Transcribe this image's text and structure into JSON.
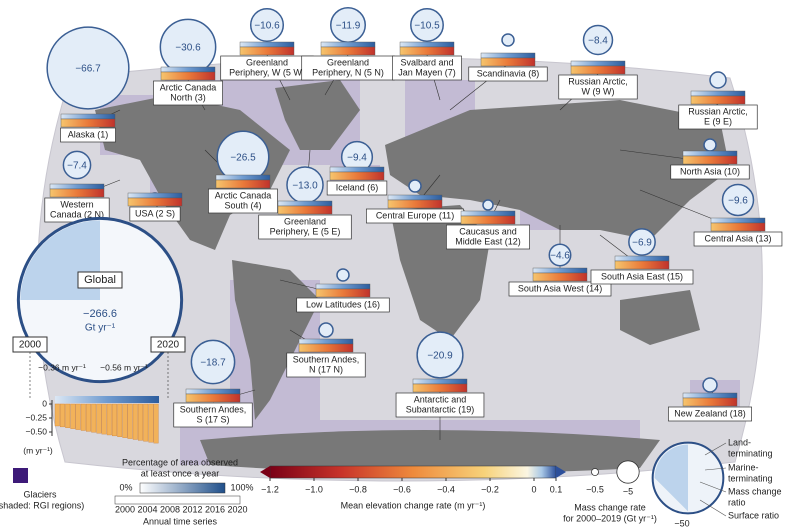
{
  "regions": [
    {
      "label": [
        "Alaska (1)"
      ],
      "rate": -66.7,
      "rate_label": "−66.7"
    },
    {
      "label": [
        "Arctic Canada",
        "North (3)"
      ],
      "rate": -30.6,
      "rate_label": "−30.6"
    },
    {
      "label": [
        "Greenland",
        "Periphery, W (5 W)"
      ],
      "rate": -10.6,
      "rate_label": "−10.6"
    },
    {
      "label": [
        "Greenland",
        "Periphery, N (5 N)"
      ],
      "rate": -11.9,
      "rate_label": "−11.9"
    },
    {
      "label": [
        "Svalbard and",
        "Jan Mayen (7)"
      ],
      "rate": -10.5,
      "rate_label": "−10.5"
    },
    {
      "label": [
        "Scandinavia (8)"
      ]
    },
    {
      "label": [
        "Russian Arctic,",
        "W (9 W)"
      ],
      "rate": -8.4,
      "rate_label": "−8.4"
    },
    {
      "label": [
        "Russian Arctic,",
        "E (9 E)"
      ]
    },
    {
      "label": [
        "Western",
        "Canada (2 N)"
      ],
      "rate": -7.4,
      "rate_label": "−7.4"
    },
    {
      "label": [
        "Arctic Canada",
        "South (4)"
      ],
      "rate": -26.5,
      "rate_label": "−26.5"
    },
    {
      "label": [
        "USA (2 S)"
      ]
    },
    {
      "label": [
        "Greenland",
        "Periphery, E (5 E)"
      ],
      "rate": -13.0,
      "rate_label": "−13.0"
    },
    {
      "label": [
        "Iceland (6)"
      ],
      "rate": -9.4,
      "rate_label": "−9.4"
    },
    {
      "label": [
        "Central Europe (11)"
      ]
    },
    {
      "label": [
        "Caucasus and",
        "Middle East (12)"
      ]
    },
    {
      "label": [
        "North Asia (10)"
      ]
    },
    {
      "label": [
        "Central Asia (13)"
      ],
      "rate": -9.6,
      "rate_label": "−9.6"
    },
    {
      "label": [
        "South Asia West (14)"
      ],
      "rate": -4.6,
      "rate_label": "−4.6"
    },
    {
      "label": [
        "South Asia East (15)"
      ],
      "rate": -6.9,
      "rate_label": "−6.9"
    },
    {
      "label": [
        "Low Latitudes (16)"
      ]
    },
    {
      "label": [
        "Southern Andes,",
        "N (17 N)"
      ]
    },
    {
      "label": [
        "Southern Andes,",
        "S (17 S)"
      ],
      "rate": -18.7,
      "rate_label": "−18.7"
    },
    {
      "label": [
        "Antarctic and",
        "Subantarctic (19)"
      ],
      "rate": -20.9,
      "rate_label": "−20.9"
    },
    {
      "label": [
        "New Zealand (18)"
      ]
    }
  ],
  "global": {
    "label": "Global",
    "rate": -266.6,
    "rate_label": "−266.6",
    "unit": "Gt yr⁻¹",
    "start": "2000",
    "end": "2020",
    "start_rate": "−0.36 m yr⁻¹",
    "end_rate": "−0.56 m yr⁻¹",
    "yticks": [
      {
        "value": 0,
        "label": "0"
      },
      {
        "value": -0.25,
        "label": "−0.25"
      },
      {
        "value": -0.5,
        "label": "−0.50"
      }
    ],
    "yunit": "(m yr⁻¹)"
  },
  "colorbar": {
    "label": "Mean elevation change rate (m yr⁻¹)",
    "lim": [
      -1.2,
      0.1
    ],
    "ticks": [
      {
        "value": -1.2,
        "label": "−1.2"
      },
      {
        "value": -1.0,
        "label": "−1.0"
      },
      {
        "value": -0.8,
        "label": "−0.8"
      },
      {
        "value": -0.6,
        "label": "−0.6"
      },
      {
        "value": -0.4,
        "label": "−0.4"
      },
      {
        "value": -0.2,
        "label": "−0.2"
      },
      0,
      0.1
    ]
  },
  "legend": {
    "glaciers": [
      "Glaciers",
      "(shaded: RGI regions)"
    ],
    "observed": [
      "Percentage of area observed",
      "at least once a year"
    ],
    "observed_min": "0%",
    "observed_max": "100%",
    "years": [
      "2000",
      "2004",
      "2008",
      "2012",
      "2016",
      "2020"
    ],
    "annual": "Annual time series",
    "size_title": [
      "Mass change rate",
      "for 2000–2019 (Gt yr⁻¹)"
    ],
    "sizes": [
      {
        "value": -0.5,
        "label": "−0.5"
      },
      {
        "value": -5,
        "label": "−5"
      },
      {
        "value": -50,
        "label": "−50"
      }
    ],
    "land": [
      "Land-",
      "terminating"
    ],
    "marine": [
      "Marine-",
      "terminating"
    ],
    "mass_ratio": [
      "Mass change",
      "ratio"
    ],
    "surface_ratio": "Surface ratio"
  }
}
